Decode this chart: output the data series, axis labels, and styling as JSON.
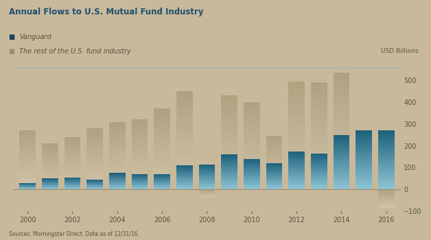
{
  "years": [
    2000,
    2001,
    2002,
    2003,
    2004,
    2005,
    2006,
    2007,
    2008,
    2009,
    2010,
    2011,
    2012,
    2013,
    2014,
    2015,
    2016
  ],
  "vanguard": [
    30,
    50,
    55,
    45,
    75,
    70,
    70,
    110,
    115,
    160,
    140,
    120,
    175,
    165,
    250,
    270,
    270
  ],
  "rest": [
    270,
    210,
    240,
    280,
    310,
    320,
    370,
    450,
    -35,
    430,
    400,
    245,
    495,
    490,
    535,
    30,
    -85
  ],
  "title": "Annual Flows to U.S. Mutual Fund Industry",
  "legend_vanguard": "Vanguard",
  "legend_rest": "The rest of the U.S. fund industry",
  "ylabel": "USD Billions",
  "source": "Sources: Morningstar Direct. Data as of 12/31/16.",
  "ylim_min": -100,
  "ylim_max": 560,
  "yticks": [
    -100,
    0,
    100,
    200,
    300,
    400,
    500
  ],
  "background_color": "#c9b99b",
  "vanguard_color_top": "#1c5f7a",
  "vanguard_color_bottom": "#8ec4d5",
  "rest_color_top": "#b0a080",
  "rest_color_bottom": "#d0c4a8",
  "title_color": "#1c5070",
  "legend_vanguard_color": "#1c4060",
  "legend_rest_color": "#9a8e78",
  "text_color": "#5a5040",
  "grid_color": "#b8a878",
  "axis_line_color": "#a09070",
  "top_line_color": "#a0b0b8"
}
